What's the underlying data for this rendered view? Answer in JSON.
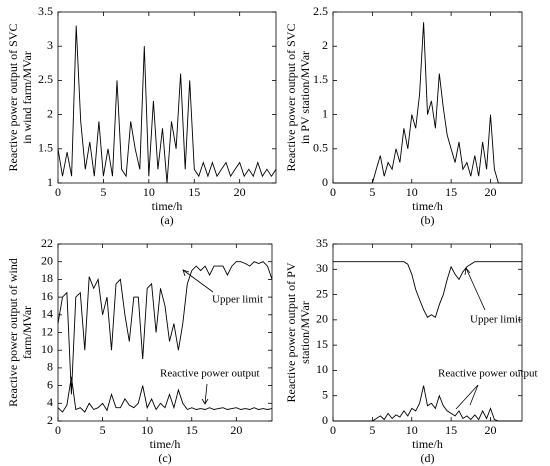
{
  "chart_data": [
    {
      "type": "line",
      "ylabel": [
        "Reactive power output of SVC",
        "in wind farm/MVar"
      ],
      "xlabel": "time/h",
      "caption": "(a)",
      "xlim": [
        0,
        24
      ],
      "xticks": [
        0,
        5,
        10,
        15,
        20
      ],
      "ylim": [
        1,
        3.5
      ],
      "yticks": [
        1,
        1.5,
        2,
        2.5,
        3,
        3.5
      ],
      "x": [
        0,
        0.5,
        1,
        1.5,
        2,
        2.5,
        3,
        3.5,
        4,
        4.5,
        5,
        5.5,
        6,
        6.5,
        7,
        7.5,
        8,
        8.5,
        9,
        9.5,
        10,
        10.5,
        11,
        11.5,
        12,
        12.5,
        13,
        13.5,
        14,
        14.5,
        15,
        15.5,
        16,
        16.5,
        17,
        17.5,
        18,
        18.5,
        19,
        19.5,
        20,
        20.5,
        21,
        21.5,
        22,
        22.5,
        23,
        23.5,
        24
      ],
      "series": [
        {
          "color": "#000000",
          "values": [
            1.5,
            1.1,
            1.45,
            1.1,
            3.3,
            1.9,
            1.2,
            1.6,
            1.1,
            1.9,
            1.1,
            1.5,
            1.1,
            2.5,
            1.2,
            1.1,
            1.9,
            1.5,
            1.2,
            3.0,
            1.1,
            2.2,
            1.2,
            1.8,
            1.0,
            1.9,
            1.5,
            2.6,
            1.2,
            2.5,
            1.2,
            1.1,
            1.3,
            1.1,
            1.3,
            1.1,
            1.2,
            1.3,
            1.1,
            1.2,
            1.3,
            1.1,
            1.2,
            1.1,
            1.3,
            1.1,
            1.2,
            1.1,
            1.2
          ]
        }
      ]
    },
    {
      "type": "line",
      "ylabel": [
        "Reactive power output of SVC",
        "in PV station/MVar"
      ],
      "xlabel": "time/h",
      "caption": "(b)",
      "xlim": [
        0,
        24
      ],
      "xticks": [
        0,
        5,
        10,
        15,
        20
      ],
      "ylim": [
        0,
        2.5
      ],
      "yticks": [
        0,
        0.5,
        1,
        1.5,
        2,
        2.5
      ],
      "x": [
        0,
        0.5,
        1,
        1.5,
        2,
        2.5,
        3,
        3.5,
        4,
        4.5,
        5,
        5.5,
        6,
        6.5,
        7,
        7.5,
        8,
        8.5,
        9,
        9.5,
        10,
        10.5,
        11,
        11.5,
        12,
        12.5,
        13,
        13.5,
        14,
        14.5,
        15,
        15.5,
        16,
        16.5,
        17,
        17.5,
        18,
        18.5,
        19,
        19.5,
        20,
        20.5,
        21,
        21.5,
        22,
        22.5,
        23,
        23.5,
        24
      ],
      "series": [
        {
          "color": "#000000",
          "values": [
            0,
            0,
            0,
            0,
            0,
            0,
            0,
            0,
            0,
            0,
            0,
            0.2,
            0.4,
            0.1,
            0.3,
            0.2,
            0.5,
            0.3,
            0.8,
            0.5,
            1.0,
            0.8,
            1.3,
            2.35,
            1.0,
            1.2,
            0.8,
            1.6,
            1.1,
            0.7,
            0.5,
            0.3,
            0.6,
            0.2,
            0.3,
            0.1,
            0.4,
            0.1,
            0.6,
            0.2,
            1.0,
            0.2,
            0,
            0,
            0,
            0,
            0,
            0,
            0
          ]
        }
      ]
    },
    {
      "type": "line",
      "ylabel": [
        "Reactive power output of wind",
        "farm/MVar"
      ],
      "xlabel": "time/h",
      "caption": "(c)",
      "xlim": [
        0,
        24
      ],
      "xticks": [
        0,
        5,
        10,
        15,
        20
      ],
      "ylim": [
        2,
        22
      ],
      "yticks": [
        2,
        4,
        6,
        8,
        10,
        12,
        14,
        16,
        18,
        20,
        22
      ],
      "x": [
        0,
        0.5,
        1,
        1.5,
        2,
        2.5,
        3,
        3.5,
        4,
        4.5,
        5,
        5.5,
        6,
        6.5,
        7,
        7.5,
        8,
        8.5,
        9,
        9.5,
        10,
        10.5,
        11,
        11.5,
        12,
        12.5,
        13,
        13.5,
        14,
        14.5,
        15,
        15.5,
        16,
        16.5,
        17,
        17.5,
        18,
        18.5,
        19,
        19.5,
        20,
        20.5,
        21,
        21.5,
        22,
        22.5,
        23,
        23.5,
        24
      ],
      "series": [
        {
          "name": "Upper limit",
          "color": "#000000",
          "values": [
            13,
            16,
            16.5,
            5,
            16,
            16.5,
            10,
            18.3,
            17,
            18,
            14,
            16,
            10,
            17.5,
            18,
            14,
            11,
            16,
            16,
            9,
            17,
            17.5,
            12,
            17,
            15,
            11,
            13,
            10,
            13,
            17.5,
            19,
            19.5,
            19,
            19.5,
            18.5,
            19.5,
            19.5,
            19.5,
            18.5,
            19.5,
            20,
            20,
            19.8,
            19.5,
            20,
            19.8,
            20,
            19.5,
            18
          ]
        },
        {
          "name": "Reactive power output",
          "color": "#000000",
          "values": [
            3.5,
            3,
            3.8,
            7,
            3.3,
            3.5,
            3,
            4,
            3.3,
            3.5,
            4,
            3.2,
            5,
            3.5,
            3.5,
            4.5,
            3.8,
            3.5,
            4,
            6,
            3.5,
            4.5,
            3.3,
            4,
            3.5,
            5,
            3.5,
            5.5,
            4,
            3.3,
            3.5,
            3.3,
            3.4,
            3.3,
            3.5,
            3.3,
            3.4,
            3.5,
            3.3,
            3.4,
            3.5,
            3.3,
            3.4,
            3.3,
            3.5,
            3.3,
            3.4,
            3.3,
            3.4
          ]
        }
      ]
    },
    {
      "type": "line",
      "ylabel": [
        "Reactive power output of PV",
        "station/MVar"
      ],
      "xlabel": "time/h",
      "caption": "(d)",
      "xlim": [
        0,
        24
      ],
      "xticks": [
        0,
        5,
        10,
        15,
        20
      ],
      "ylim": [
        0,
        35
      ],
      "yticks": [
        0,
        5,
        10,
        15,
        20,
        25,
        30,
        35
      ],
      "x": [
        0,
        0.5,
        1,
        1.5,
        2,
        2.5,
        3,
        3.5,
        4,
        4.5,
        5,
        5.5,
        6,
        6.5,
        7,
        7.5,
        8,
        8.5,
        9,
        9.5,
        10,
        10.5,
        11,
        11.5,
        12,
        12.5,
        13,
        13.5,
        14,
        14.5,
        15,
        15.5,
        16,
        16.5,
        17,
        17.5,
        18,
        18.5,
        19,
        19.5,
        20,
        20.5,
        21,
        21.5,
        22,
        22.5,
        23,
        23.5,
        24
      ],
      "series": [
        {
          "name": "Upper limit",
          "color": "#000000",
          "values": [
            31.5,
            31.5,
            31.5,
            31.5,
            31.5,
            31.5,
            31.5,
            31.5,
            31.5,
            31.5,
            31.5,
            31.5,
            31.5,
            31.5,
            31.5,
            31.5,
            31.5,
            31.5,
            31.5,
            31,
            29,
            26,
            24,
            22,
            20.5,
            21,
            20.5,
            23,
            25,
            28,
            30.5,
            29,
            28,
            29.5,
            30.5,
            31,
            31.5,
            31.5,
            31.5,
            31.5,
            31.5,
            31.5,
            31.5,
            31.5,
            31.5,
            31.5,
            31.5,
            31.5,
            31.5
          ]
        },
        {
          "name": "Reactive power output",
          "color": "#000000",
          "values": [
            0,
            0,
            0,
            0,
            0,
            0,
            0,
            0,
            0,
            0,
            0,
            0.5,
            1,
            0.3,
            1.5,
            0.5,
            1.2,
            0.8,
            2,
            1,
            2.5,
            2,
            3.5,
            7,
            3,
            3.5,
            2.5,
            5,
            3,
            2,
            1.5,
            1,
            2,
            0.5,
            1,
            0.3,
            1.2,
            0.3,
            2,
            0.5,
            2.5,
            0.3,
            0,
            0,
            0,
            0,
            0,
            0,
            0
          ]
        }
      ]
    }
  ]
}
